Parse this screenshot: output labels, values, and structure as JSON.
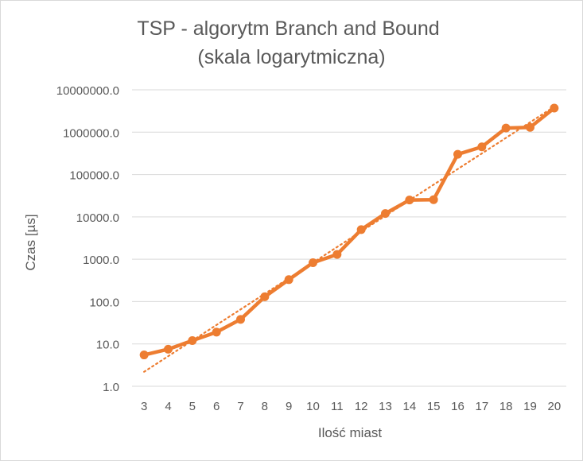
{
  "chart_data": {
    "type": "line",
    "title_lines": [
      "TSP - algorytm Branch and Bound",
      "(skala logarytmiczna)"
    ],
    "xlabel": "Ilość miast",
    "ylabel": "Czas [µs]",
    "y_scale": "log",
    "ylim": [
      1,
      10000000
    ],
    "y_ticks": [
      1,
      10,
      100,
      1000,
      10000,
      100000,
      1000000,
      10000000
    ],
    "y_tick_labels": [
      "1.0",
      "10.0",
      "100.0",
      "1000.0",
      "10000.0",
      "100000.0",
      "1000000.0",
      "10000000.0"
    ],
    "categories": [
      "3",
      "4",
      "5",
      "6",
      "7",
      "8",
      "9",
      "10",
      "11",
      "12",
      "13",
      "14",
      "15",
      "16",
      "17",
      "18",
      "19",
      "20"
    ],
    "series": [
      {
        "values": [
          5.5,
          7.5,
          12,
          19,
          38,
          130,
          330,
          830,
          1300,
          5000,
          12000,
          25000,
          25500,
          300000,
          450000,
          1250000,
          1300000,
          3700000
        ],
        "color": "#ed7d31",
        "style": "solid",
        "markers": true
      }
    ],
    "trendline": {
      "type": "exponential",
      "color": "#ed7d31",
      "style": "dotted",
      "start_value": 2.2,
      "end_value": 4000000
    },
    "grid": true,
    "legend": "none"
  }
}
